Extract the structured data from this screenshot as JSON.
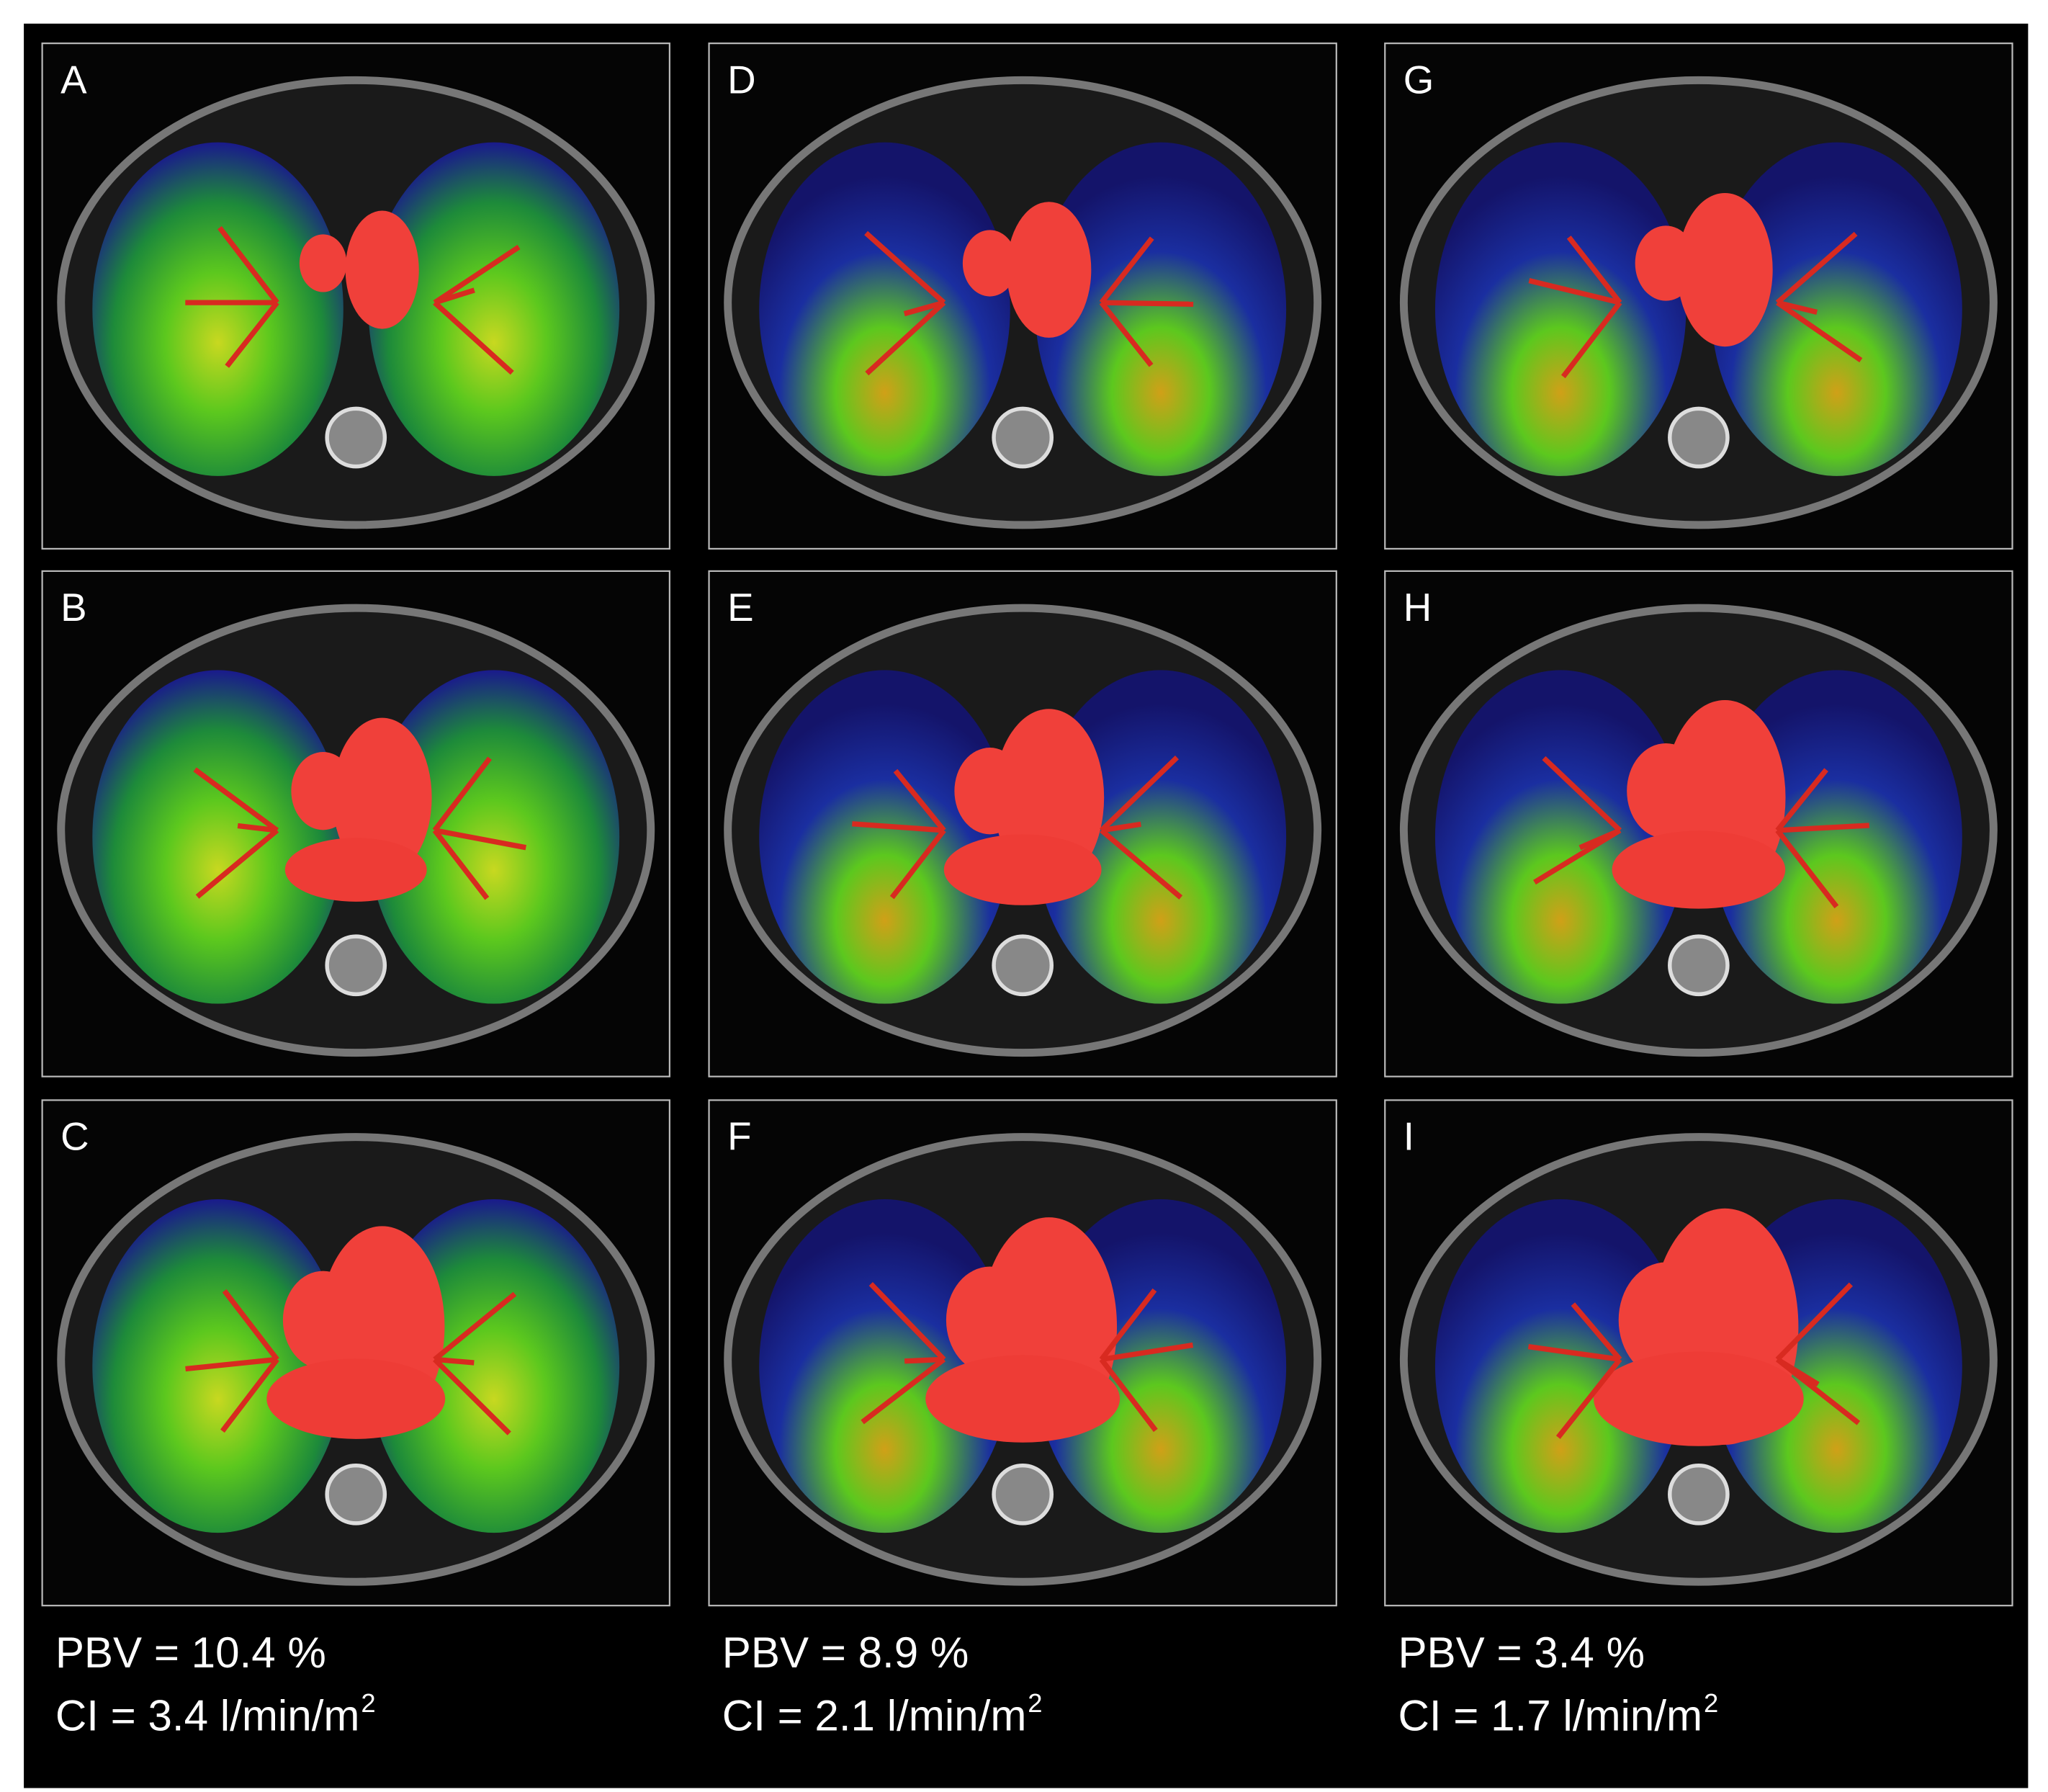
{
  "columns": [
    {
      "panels": [
        "A",
        "B",
        "C"
      ],
      "pbv": "PBV = 10.4 %",
      "ci": "CI = 3.4 l/min/m",
      "ci_sup": "2"
    },
    {
      "panels": [
        "D",
        "E",
        "F"
      ],
      "pbv": "PBV = 8.9 %",
      "ci": "CI = 2.1 l/min/m",
      "ci_sup": "2"
    },
    {
      "panels": [
        "G",
        "H",
        "I"
      ],
      "pbv": "PBV = 3.4 %",
      "ci": "CI = 1.7 l/min/m",
      "ci_sup": "2"
    }
  ]
}
